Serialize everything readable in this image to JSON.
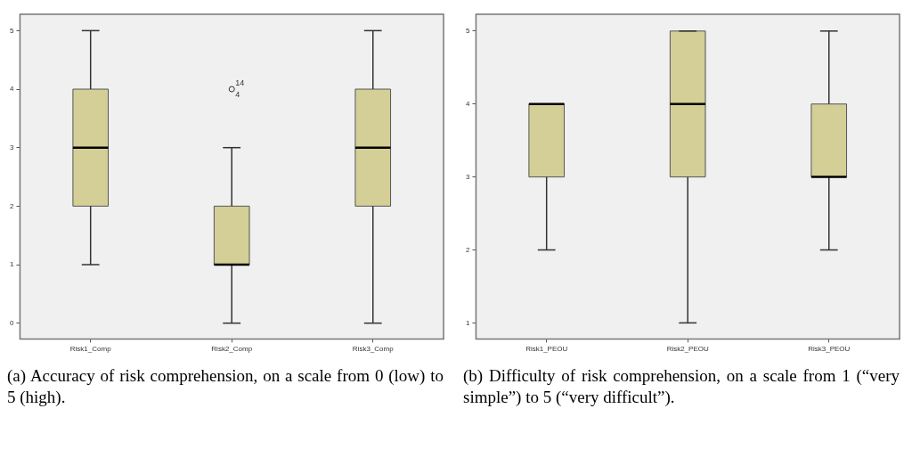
{
  "chart_data": [
    {
      "type": "box",
      "categories": [
        "Risk1_Comp",
        "Risk2_Comp",
        "Risk3_Comp"
      ],
      "color": "#d3cf96",
      "ylim": [
        -0.27,
        5.28
      ],
      "yticks": [
        0,
        1,
        2,
        3,
        4,
        5
      ],
      "grid": false,
      "legend": false,
      "boxes": [
        {
          "low": 1,
          "q1": 2,
          "median": 3,
          "q3": 4,
          "high": 5
        },
        {
          "low": 0,
          "q1": 1,
          "median": 1,
          "q3": 2,
          "high": 3,
          "outliers": [
            4
          ]
        },
        {
          "low": 0,
          "q1": 2,
          "median": 3,
          "q3": 4,
          "high": 5
        }
      ],
      "annotations": [
        "(a) Accuracy of risk comprehension, on a scale from 0 (low) to 5 (high).",
        "14",
        "4"
      ]
    },
    {
      "type": "box",
      "categories": [
        "Risk1_PEOU",
        "Risk2_PEOU",
        "Risk3_PEOU"
      ],
      "color": "#d3cf96",
      "ylim": [
        0.78,
        5.23
      ],
      "yticks": [
        1,
        2,
        3,
        4,
        5
      ],
      "grid": false,
      "legend": false,
      "boxes": [
        {
          "low": 2,
          "q1": 3,
          "median": 4,
          "q3": 4,
          "high": 4
        },
        {
          "low": 1,
          "q1": 3,
          "median": 4,
          "q3": 5,
          "high": 5
        },
        {
          "low": 2,
          "q1": 3,
          "median": 3,
          "q3": 4,
          "high": 5
        }
      ],
      "annotations": [
        "(b) Difficulty of risk comprehension, on a scale from 1 (“very simple”) to 5 (“very difficult”)."
      ]
    }
  ]
}
